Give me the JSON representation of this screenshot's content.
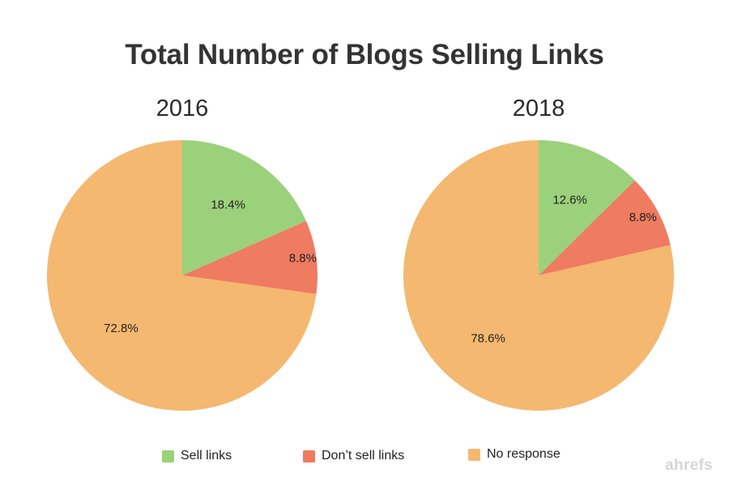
{
  "chart_data": {
    "type": "pie",
    "title": "Total Number of Blogs Selling Links",
    "legend": [
      "Sell links",
      "Don’t sell links",
      "No response"
    ],
    "legend_position": "bottom",
    "colors": [
      "#9bd17b",
      "#ef7b61",
      "#f4b870"
    ],
    "pies": [
      {
        "title": "2016",
        "slices": [
          {
            "label": "Sell links",
            "value": 18.4,
            "display": "18.4%"
          },
          {
            "label": "Don’t sell links",
            "value": 8.8,
            "display": "8.8%"
          },
          {
            "label": "No response",
            "value": 72.8,
            "display": "72.8%"
          }
        ]
      },
      {
        "title": "2018",
        "slices": [
          {
            "label": "Sell links",
            "value": 12.6,
            "display": "12.6%"
          },
          {
            "label": "Don’t sell links",
            "value": 8.8,
            "display": "8.8%"
          },
          {
            "label": "No response",
            "value": 78.6,
            "display": "78.6%"
          }
        ]
      }
    ]
  },
  "watermark": "ahrefs"
}
